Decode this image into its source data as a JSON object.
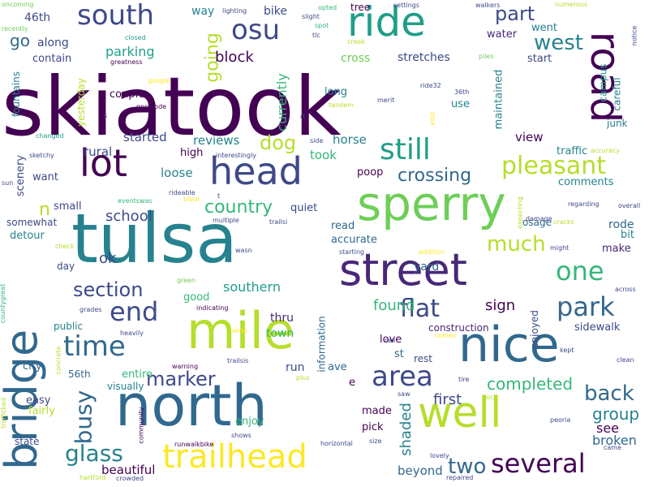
{
  "palette": {
    "purple": "#440154",
    "indigo": "#482878",
    "blue": "#3e4989",
    "steel": "#31688e",
    "teal": "#26828e",
    "sea": "#1f9e89",
    "green": "#35b779",
    "lime": "#6ece58",
    "yellowgreen": "#b5de2b",
    "yellow": "#fde725"
  },
  "words": [
    {
      "text": "skiatook",
      "size": 100,
      "color": "#440154"
    },
    {
      "text": "tulsa",
      "size": 84,
      "color": "#26828e"
    },
    {
      "text": "north",
      "size": 70,
      "color": "#31688e"
    },
    {
      "text": "mile",
      "size": 62,
      "color": "#b5de2b"
    },
    {
      "text": "nice",
      "size": 60,
      "color": "#31688e"
    },
    {
      "text": "sperry",
      "size": 58,
      "color": "#6ece58"
    },
    {
      "text": "street",
      "size": 54,
      "color": "#482878"
    },
    {
      "text": "bridge",
      "size": 54,
      "color": "#31688e"
    },
    {
      "text": "well",
      "size": 52,
      "color": "#b5de2b"
    },
    {
      "text": "ride",
      "size": 50,
      "color": "#1f9e89"
    },
    {
      "text": "road",
      "size": 50,
      "color": "#440154"
    },
    {
      "text": "lot",
      "size": 46,
      "color": "#440154"
    },
    {
      "text": "head",
      "size": 46,
      "color": "#3e4989"
    },
    {
      "text": "trailhead",
      "size": 40,
      "color": "#fde725"
    },
    {
      "text": "still",
      "size": 36,
      "color": "#1f9e89"
    },
    {
      "text": "area",
      "size": 34,
      "color": "#3e4989"
    },
    {
      "text": "south",
      "size": 34,
      "color": "#3e4989"
    },
    {
      "text": "osu",
      "size": 34,
      "color": "#3e4989"
    },
    {
      "text": "time",
      "size": 34,
      "color": "#31688e"
    },
    {
      "text": "end",
      "size": 32,
      "color": "#3e4989"
    },
    {
      "text": "several",
      "size": 32,
      "color": "#440154"
    },
    {
      "text": "park",
      "size": 32,
      "color": "#31688e"
    },
    {
      "text": "one",
      "size": 32,
      "color": "#35b779"
    },
    {
      "text": "pleasant",
      "size": 30,
      "color": "#b5de2b"
    },
    {
      "text": "flat",
      "size": 30,
      "color": "#3e4989"
    },
    {
      "text": "busy",
      "size": 28,
      "color": "#31688e"
    },
    {
      "text": "glass",
      "size": 28,
      "color": "#26828e"
    },
    {
      "text": "back",
      "size": 26,
      "color": "#31688e"
    },
    {
      "text": "much",
      "size": 26,
      "color": "#b5de2b"
    },
    {
      "text": "two",
      "size": 26,
      "color": "#31688e"
    },
    {
      "text": "west",
      "size": 26,
      "color": "#26828e"
    },
    {
      "text": "dog",
      "size": 24,
      "color": "#b5de2b"
    },
    {
      "text": "part",
      "size": 24,
      "color": "#3e4989"
    },
    {
      "text": "section",
      "size": 24,
      "color": "#3e4989"
    },
    {
      "text": "marker",
      "size": 24,
      "color": "#3e4989"
    },
    {
      "text": "going",
      "size": 22,
      "color": "#b5de2b"
    },
    {
      "text": "country",
      "size": 22,
      "color": "#35b779"
    },
    {
      "text": "crossing",
      "size": 22,
      "color": "#31688e"
    },
    {
      "text": "completed",
      "size": 20,
      "color": "#35b779"
    },
    {
      "text": "group",
      "size": 20,
      "color": "#26828e"
    },
    {
      "text": "go",
      "size": 20,
      "color": "#31688e"
    },
    {
      "text": "ok",
      "size": 18,
      "color": "#3e4989"
    },
    {
      "text": "block",
      "size": 18,
      "color": "#440154"
    },
    {
      "text": "school",
      "size": 18,
      "color": "#3e4989"
    },
    {
      "text": "shaded",
      "size": 18,
      "color": "#26828e"
    },
    {
      "text": "first",
      "size": 18,
      "color": "#3e4989"
    },
    {
      "text": "sign",
      "size": 18,
      "color": "#440154"
    },
    {
      "text": "found",
      "size": 18,
      "color": "#35b779"
    },
    {
      "text": "southern",
      "size": 16,
      "color": "#1f9e89"
    },
    {
      "text": "parking",
      "size": 16,
      "color": "#1f9e89"
    },
    {
      "text": "currently",
      "size": 16,
      "color": "#35b779"
    },
    {
      "text": "n",
      "size": 22,
      "color": "#b5de2b"
    },
    {
      "text": "broken",
      "size": 16,
      "color": "#31688e"
    },
    {
      "text": "see",
      "size": 16,
      "color": "#440154"
    },
    {
      "text": "beautiful",
      "size": 15,
      "color": "#440154"
    },
    {
      "text": "beyond",
      "size": 15,
      "color": "#31688e"
    },
    {
      "text": "view",
      "size": 15,
      "color": "#440154"
    },
    {
      "text": "loose",
      "size": 15,
      "color": "#26828e"
    },
    {
      "text": "rural",
      "size": 15,
      "color": "#3e4989"
    },
    {
      "text": "started",
      "size": 15,
      "color": "#3e4989"
    },
    {
      "text": "reviews",
      "size": 15,
      "color": "#26828e"
    },
    {
      "text": "horse",
      "size": 15,
      "color": "#26828e"
    },
    {
      "text": "took",
      "size": 15,
      "color": "#35b779"
    },
    {
      "text": "stretches",
      "size": 14,
      "color": "#3e4989"
    },
    {
      "text": "cross",
      "size": 14,
      "color": "#6ece58"
    },
    {
      "text": "water",
      "size": 13,
      "color": "#482878"
    },
    {
      "text": "went",
      "size": 13,
      "color": "#26828e"
    },
    {
      "text": "start",
      "size": 13,
      "color": "#3e4989"
    },
    {
      "text": "along",
      "size": 14,
      "color": "#3e4989"
    },
    {
      "text": "contain",
      "size": 13,
      "color": "#3e4989"
    },
    {
      "text": "46th",
      "size": 14,
      "color": "#3e4989"
    },
    {
      "text": "way",
      "size": 14,
      "color": "#26828e"
    },
    {
      "text": "bike",
      "size": 14,
      "color": "#3e4989"
    },
    {
      "text": "tree",
      "size": 12,
      "color": "#440154"
    },
    {
      "text": "long",
      "size": 13,
      "color": "#26828e"
    },
    {
      "text": "use",
      "size": 13,
      "color": "#26828e"
    },
    {
      "text": "maintained",
      "size": 13,
      "color": "#26828e"
    },
    {
      "text": "campus",
      "size": 12,
      "color": "#1f9e89"
    },
    {
      "text": "careful",
      "size": 12,
      "color": "#26828e"
    },
    {
      "text": "junk",
      "size": 12,
      "color": "#26828e"
    },
    {
      "text": "traffic",
      "size": 13,
      "color": "#26828e"
    },
    {
      "text": "comments",
      "size": 13,
      "color": "#26828e"
    },
    {
      "text": "rode",
      "size": 14,
      "color": "#31688e"
    },
    {
      "text": "bit",
      "size": 13,
      "color": "#26828e"
    },
    {
      "text": "make",
      "size": 13,
      "color": "#482878"
    },
    {
      "text": "osage",
      "size": 12,
      "color": "#31688e"
    },
    {
      "text": "sidewalk",
      "size": 13,
      "color": "#3e4989"
    },
    {
      "text": "enjoyed",
      "size": 12,
      "color": "#3e4989"
    },
    {
      "text": "yard",
      "size": 14,
      "color": "#31688e"
    },
    {
      "text": "accurate",
      "size": 13,
      "color": "#31688e"
    },
    {
      "text": "read",
      "size": 13,
      "color": "#31688e"
    },
    {
      "text": "quiet",
      "size": 13,
      "color": "#3e4989"
    },
    {
      "text": "poop",
      "size": 13,
      "color": "#440154"
    },
    {
      "text": "couple",
      "size": 13,
      "color": "#440154"
    },
    {
      "text": "high",
      "size": 13,
      "color": "#440154"
    },
    {
      "text": "yesterday",
      "size": 12,
      "color": "#b5de2b"
    },
    {
      "text": "fountains",
      "size": 12,
      "color": "#26828e"
    },
    {
      "text": "scenery",
      "size": 13,
      "color": "#3e4989"
    },
    {
      "text": "want",
      "size": 13,
      "color": "#3e4989"
    },
    {
      "text": "small",
      "size": 13,
      "color": "#3e4989"
    },
    {
      "text": "somewhat",
      "size": 12,
      "color": "#3e4989"
    },
    {
      "text": "detour",
      "size": 13,
      "color": "#26828e"
    },
    {
      "text": "day",
      "size": 12,
      "color": "#3e4989"
    },
    {
      "text": "good",
      "size": 13,
      "color": "#35b779"
    },
    {
      "text": "public",
      "size": 12,
      "color": "#26828e"
    },
    {
      "text": "city",
      "size": 13,
      "color": "#31688e"
    },
    {
      "text": "56th",
      "size": 12,
      "color": "#31688e"
    },
    {
      "text": "entire",
      "size": 13,
      "color": "#35b779"
    },
    {
      "text": "visually",
      "size": 12,
      "color": "#26828e"
    },
    {
      "text": "easy",
      "size": 13,
      "color": "#3e4989"
    },
    {
      "text": "fairly",
      "size": 13,
      "color": "#b5de2b"
    },
    {
      "text": "state",
      "size": 12,
      "color": "#3e4989"
    },
    {
      "text": "town",
      "size": 14,
      "color": "#35b779"
    },
    {
      "text": "thru",
      "size": 14,
      "color": "#482878"
    },
    {
      "text": "run",
      "size": 14,
      "color": "#3e4989"
    },
    {
      "text": "enjoy",
      "size": 13,
      "color": "#35b779"
    },
    {
      "text": "made",
      "size": 13,
      "color": "#440154"
    },
    {
      "text": "pick",
      "size": 13,
      "color": "#440154"
    },
    {
      "text": "ave",
      "size": 13,
      "color": "#31688e"
    },
    {
      "text": "e",
      "size": 13,
      "color": "#440154"
    },
    {
      "text": "st",
      "size": 13,
      "color": "#31688e"
    },
    {
      "text": "love",
      "size": 13,
      "color": "#440154"
    },
    {
      "text": "rest",
      "size": 12,
      "color": "#3e4989"
    },
    {
      "text": "information",
      "size": 12,
      "color": "#31688e"
    },
    {
      "text": "construction",
      "size": 12,
      "color": "#482878"
    },
    {
      "text": "oncoming",
      "size": 8,
      "color": "#6ece58"
    },
    {
      "text": "recently",
      "size": 8,
      "color": "#6ece58"
    },
    {
      "text": "lighting",
      "size": 8,
      "color": "#3e4989"
    },
    {
      "text": "opted",
      "size": 8,
      "color": "#35b779"
    },
    {
      "text": "settings",
      "size": 8,
      "color": "#3e4989"
    },
    {
      "text": "walkers",
      "size": 8,
      "color": "#3e4989"
    },
    {
      "text": "numerous",
      "size": 8,
      "color": "#b5de2b"
    },
    {
      "text": "slight",
      "size": 8,
      "color": "#3e4989"
    },
    {
      "text": "spot",
      "size": 8,
      "color": "#35b779"
    },
    {
      "text": "tlc",
      "size": 8,
      "color": "#3e4989"
    },
    {
      "text": "creek",
      "size": 8,
      "color": "#b5de2b"
    },
    {
      "text": "closed",
      "size": 8,
      "color": "#1f9e89"
    },
    {
      "text": "greatness",
      "size": 8,
      "color": "#440154"
    },
    {
      "text": "piles",
      "size": 8,
      "color": "#6ece58"
    },
    {
      "text": "notice",
      "size": 8,
      "color": "#3e4989"
    },
    {
      "text": "google",
      "size": 8,
      "color": "#fde725"
    },
    {
      "text": "goesrode",
      "size": 8,
      "color": "#440154"
    },
    {
      "text": "ride32",
      "size": 8,
      "color": "#3e4989"
    },
    {
      "text": "36th",
      "size": 8,
      "color": "#3e4989"
    },
    {
      "text": "tandem",
      "size": 8,
      "color": "#b5de2b"
    },
    {
      "text": "merit",
      "size": 8,
      "color": "#3e4989"
    },
    {
      "text": "rt",
      "size": 8,
      "color": "#3e4989"
    },
    {
      "text": "changed",
      "size": 8,
      "color": "#1f9e89"
    },
    {
      "text": "sketchy",
      "size": 8,
      "color": "#3e4989"
    },
    {
      "text": "interestingly",
      "size": 8,
      "color": "#3e4989"
    },
    {
      "text": "side",
      "size": 8,
      "color": "#3e4989"
    },
    {
      "text": "accuracy",
      "size": 8,
      "color": "#b5de2b"
    },
    {
      "text": "regarding",
      "size": 8,
      "color": "#3e4989"
    },
    {
      "text": "sun",
      "size": 8,
      "color": "#3e4989"
    },
    {
      "text": "eventswas",
      "size": 8,
      "color": "#35b779"
    },
    {
      "text": "rideable",
      "size": 8,
      "color": "#3e4989"
    },
    {
      "text": "blind",
      "size": 8,
      "color": "#fde725"
    },
    {
      "text": "t",
      "size": 8,
      "color": "#3e4989"
    },
    {
      "text": "overall",
      "size": 8,
      "color": "#3e4989"
    },
    {
      "text": "multiple",
      "size": 8,
      "color": "#3e4989"
    },
    {
      "text": "trailsi",
      "size": 8,
      "color": "#3e4989"
    },
    {
      "text": "expecting",
      "size": 8,
      "color": "#b5de2b"
    },
    {
      "text": "damage",
      "size": 8,
      "color": "#3e4989"
    },
    {
      "text": "cracks",
      "size": 8,
      "color": "#b5de2b"
    },
    {
      "text": "check",
      "size": 8,
      "color": "#b5de2b"
    },
    {
      "text": "wasn",
      "size": 8,
      "color": "#3e4989"
    },
    {
      "text": "starting",
      "size": 8,
      "color": "#3e4989"
    },
    {
      "text": "addition",
      "size": 8,
      "color": "#fde725"
    },
    {
      "text": "might",
      "size": 8,
      "color": "#3e4989"
    },
    {
      "text": "green",
      "size": 8,
      "color": "#6ece58"
    },
    {
      "text": "indicating",
      "size": 8,
      "color": "#440154"
    },
    {
      "text": "grades",
      "size": 8,
      "color": "#3e4989"
    },
    {
      "text": "countygreat",
      "size": 8,
      "color": "#35b779"
    },
    {
      "text": "heavily",
      "size": 8,
      "color": "#3e4989"
    },
    {
      "text": "wide",
      "size": 8,
      "color": "#fde725"
    },
    {
      "text": "ran",
      "size": 8,
      "color": "#3e4989"
    },
    {
      "text": "comes",
      "size": 8,
      "color": "#fde725"
    },
    {
      "text": "across",
      "size": 8,
      "color": "#3e4989"
    },
    {
      "text": "kept",
      "size": 8,
      "color": "#3e4989"
    },
    {
      "text": "clean",
      "size": 8,
      "color": "#3e4989"
    },
    {
      "text": "warning",
      "size": 8,
      "color": "#440154"
    },
    {
      "text": "trailsis",
      "size": 8,
      "color": "#3e4989"
    },
    {
      "text": "plus",
      "size": 8,
      "color": "#b5de2b"
    },
    {
      "text": "concrete",
      "size": 8,
      "color": "#b5de2b"
    },
    {
      "text": "tire",
      "size": 8,
      "color": "#3e4989"
    },
    {
      "text": "saw",
      "size": 8,
      "color": "#3e4989"
    },
    {
      "text": "rock",
      "size": 8,
      "color": "#b5de2b"
    },
    {
      "text": "trafficked",
      "size": 8,
      "color": "#b5de2b"
    },
    {
      "text": "community",
      "size": 8,
      "color": "#440154"
    },
    {
      "text": "runwalkbike",
      "size": 8,
      "color": "#440154"
    },
    {
      "text": "shows",
      "size": 8,
      "color": "#3e4989"
    },
    {
      "text": "horizontal",
      "size": 8,
      "color": "#3e4989"
    },
    {
      "text": "size",
      "size": 8,
      "color": "#3e4989"
    },
    {
      "text": "peoria",
      "size": 8,
      "color": "#3e4989"
    },
    {
      "text": "lovely",
      "size": 8,
      "color": "#3e4989"
    },
    {
      "text": "came",
      "size": 8,
      "color": "#3e4989"
    },
    {
      "text": "hartford",
      "size": 8,
      "color": "#b5de2b"
    },
    {
      "text": "crowded",
      "size": 8,
      "color": "#3e4989"
    },
    {
      "text": "repaired",
      "size": 8,
      "color": "#3e4989"
    },
    {
      "text": "s",
      "size": 8,
      "color": "#3e4989"
    },
    {
      "text": "east",
      "size": 8,
      "color": "#fde725"
    }
  ]
}
